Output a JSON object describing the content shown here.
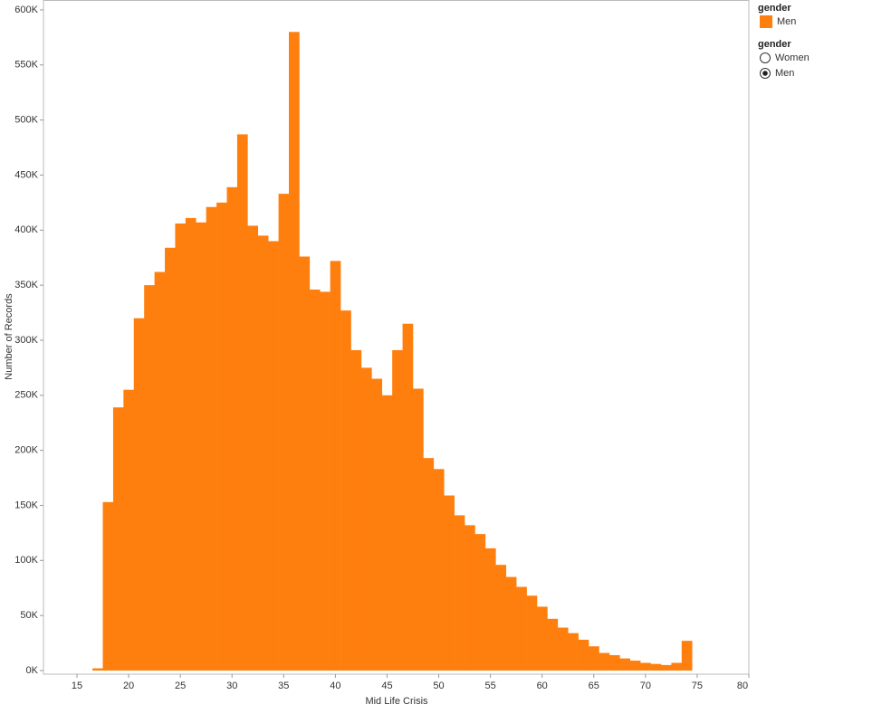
{
  "chart_data": {
    "type": "histogram",
    "x_label": "Mid Life Crisis",
    "y_label": "Number of Records",
    "color": "#ff7f0e",
    "bins": [
      16.5,
      17.5,
      18.5,
      19.5,
      20.5,
      21.5,
      22.5,
      23.5,
      24.5,
      25.5,
      26.5,
      27.5,
      28.5,
      29.5,
      30.5,
      31.5,
      32.5,
      33.5,
      34.5,
      35.5,
      36.5,
      37.5,
      38.5,
      39.5,
      40.5,
      41.5,
      42.5,
      43.5,
      44.5,
      45.5,
      46.5,
      47.5,
      48.5,
      49.5,
      50.5,
      51.5,
      52.5,
      53.5,
      54.5,
      55.5,
      56.5,
      57.5,
      58.5,
      59.5,
      60.5,
      61.5,
      62.5,
      63.5,
      64.5,
      65.5,
      66.5,
      67.5,
      68.5,
      69.5,
      70.5,
      71.5,
      72.5,
      73.5,
      74.5
    ],
    "counts": [
      2000,
      153000,
      239000,
      255000,
      320000,
      350000,
      362000,
      384000,
      406000,
      411000,
      407000,
      421000,
      425000,
      439000,
      487000,
      404000,
      395000,
      390000,
      433000,
      580000,
      376000,
      346000,
      344000,
      372000,
      327000,
      291000,
      275000,
      265000,
      250000,
      291000,
      315000,
      256000,
      193000,
      183000,
      159000,
      141000,
      132000,
      124000,
      111000,
      96000,
      85000,
      76000,
      68000,
      58000,
      47000,
      39000,
      34000,
      28000,
      22000,
      16000,
      14000,
      11000,
      9000,
      7000,
      6000,
      5000,
      7000,
      27000
    ],
    "xlim": [
      11.76,
      80
    ],
    "ylim": [
      -3300,
      609000
    ],
    "xticks": [
      15,
      20,
      25,
      30,
      35,
      40,
      45,
      50,
      55,
      60,
      65,
      70,
      75,
      80
    ],
    "yticks": [
      {
        "value": 0,
        "label": "0K"
      },
      {
        "value": 50000,
        "label": "50K"
      },
      {
        "value": 100000,
        "label": "100K"
      },
      {
        "value": 150000,
        "label": "150K"
      },
      {
        "value": 200000,
        "label": "200K"
      },
      {
        "value": 250000,
        "label": "250K"
      },
      {
        "value": 300000,
        "label": "300K"
      },
      {
        "value": 350000,
        "label": "350K"
      },
      {
        "value": 400000,
        "label": "400K"
      },
      {
        "value": 450000,
        "label": "450K"
      },
      {
        "value": 500000,
        "label": "500K"
      },
      {
        "value": 550000,
        "label": "550K"
      },
      {
        "value": 600000,
        "label": "600K"
      }
    ],
    "legend": {
      "title": "gender",
      "items": [
        "Men"
      ]
    },
    "filter": {
      "title": "gender",
      "options": [
        "Women",
        "Men"
      ],
      "selected": 1
    }
  }
}
